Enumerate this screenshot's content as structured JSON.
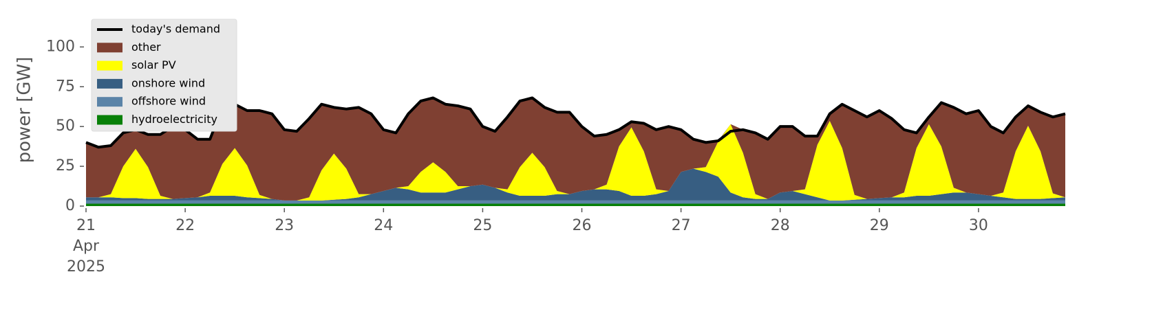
{
  "chart_data": {
    "type": "stacked_area",
    "ylabel": "power [GW]",
    "x": [
      21,
      21.125,
      21.25,
      21.375,
      21.5,
      21.625,
      21.75,
      21.875,
      22,
      22.125,
      22.25,
      22.375,
      22.5,
      22.625,
      22.75,
      22.875,
      23,
      23.125,
      23.25,
      23.375,
      23.5,
      23.625,
      23.75,
      23.875,
      24,
      24.125,
      24.25,
      24.375,
      24.5,
      24.625,
      24.75,
      24.875,
      25,
      25.125,
      25.25,
      25.375,
      25.5,
      25.625,
      25.75,
      25.875,
      26,
      26.125,
      26.25,
      26.375,
      26.5,
      26.625,
      26.75,
      26.875,
      27,
      27.125,
      27.25,
      27.375,
      27.5,
      27.625,
      27.75,
      27.875,
      28,
      28.125,
      28.25,
      28.375,
      28.5,
      28.625,
      28.75,
      28.875,
      29,
      29.125,
      29.25,
      29.375,
      29.5,
      29.625,
      29.75,
      29.875,
      30,
      30.125,
      30.25,
      30.375,
      30.5,
      30.625,
      30.75,
      30.875
    ],
    "xlim": [
      21,
      30.875
    ],
    "xticks": [
      {
        "value": 21,
        "label": "21\nApr\n2025"
      },
      22,
      23,
      24,
      25,
      26,
      27,
      28,
      29,
      30
    ],
    "ylim": [
      0,
      120
    ],
    "yticks": [
      0,
      25,
      50,
      75,
      100
    ],
    "legend": "upper left",
    "series": [
      {
        "name": "today's demand",
        "kind": "line",
        "color": "#000000",
        "values": [
          40,
          37,
          38,
          46,
          48,
          45,
          45,
          50,
          48,
          42,
          42,
          62,
          64,
          60,
          60,
          58,
          48,
          47,
          55,
          64,
          62,
          61,
          62,
          58,
          48,
          46,
          58,
          66,
          68,
          64,
          63,
          61,
          50,
          47,
          56,
          66,
          68,
          62,
          59,
          59,
          50,
          44,
          45,
          48,
          53,
          52,
          48,
          50,
          48,
          42,
          40,
          41,
          47,
          48,
          46,
          42,
          50,
          50,
          44,
          44,
          58,
          64,
          60,
          56,
          60,
          55,
          48,
          46,
          56,
          65,
          62,
          58,
          60,
          50,
          46,
          56,
          63,
          59,
          56,
          58
        ]
      },
      {
        "name": "other",
        "kind": "area",
        "color": "#7f4032",
        "values": [
          34.5,
          31.5,
          30.5,
          21,
          12,
          20.5,
          38.5,
          45.5,
          43,
          36.5,
          33.5,
          35.5,
          27.5,
          34.5,
          53,
          53.5,
          44.5,
          43.5,
          49.5,
          41.5,
          29,
          37.5,
          54.5,
          50.5,
          38.5,
          34.5,
          45.5,
          44.5,
          40.5,
          42.5,
          50.5,
          48.5,
          36.5,
          35.5,
          45.5,
          41.5,
          34.5,
          37.5,
          49.5,
          51.5,
          40.5,
          33.5,
          31.5,
          10.5,
          3.5,
          17.5,
          37.5,
          40.5,
          26.5,
          18.5,
          15.5,
          0.5,
          0,
          14.5,
          38.5,
          37.5,
          41.5,
          40.5,
          33.5,
          5.5,
          4.5,
          27.5,
          53,
          51.5,
          55,
          49.5,
          39.5,
          9.5,
          4.5,
          27.5,
          50.5,
          49.5,
          52.5,
          43.5,
          37.5,
          21.5,
          12.5,
          24.5,
          48,
          52.5
        ]
      },
      {
        "name": "solar PV",
        "kind": "area",
        "color": "#ffff00",
        "values": [
          0,
          0,
          2,
          20,
          31,
          20,
          2,
          0,
          0,
          0,
          2,
          20,
          30,
          20,
          2,
          0,
          0,
          0,
          2,
          19,
          29,
          19,
          2,
          0,
          0,
          0,
          2,
          13,
          19,
          13,
          2,
          0,
          0,
          0,
          2,
          18,
          27,
          18,
          2,
          0,
          0,
          0,
          3,
          28,
          43,
          28,
          3,
          0,
          0,
          0,
          3,
          22,
          43,
          28,
          3,
          0,
          0,
          0,
          3,
          33,
          50,
          33,
          3,
          0,
          0,
          0,
          3,
          30,
          45,
          30,
          3,
          0,
          0,
          0,
          3,
          30,
          46,
          30,
          3,
          0
        ]
      },
      {
        "name": "onshore wind",
        "kind": "area",
        "color": "#375e82",
        "values": [
          2,
          2,
          2,
          1.5,
          1.5,
          1,
          1,
          1,
          1.5,
          2,
          3,
          3,
          3,
          2,
          1.5,
          1,
          0,
          0,
          0,
          0,
          0.5,
          1,
          2,
          4,
          6,
          8,
          7,
          5,
          5,
          5,
          7,
          9,
          10,
          8,
          5,
          3,
          3,
          3,
          4,
          4,
          6,
          7,
          7,
          6,
          3,
          3,
          4,
          6,
          18,
          20,
          18,
          15,
          5,
          2,
          1,
          1,
          5,
          6,
          4,
          2,
          0,
          0,
          0.5,
          1,
          1.5,
          2,
          2,
          3,
          3,
          4,
          5,
          5,
          4,
          3,
          2,
          1,
          1,
          1,
          1.5,
          2
        ]
      },
      {
        "name": "offshore wind",
        "kind": "area",
        "color": "#5b84a8",
        "values": [
          2,
          2,
          2,
          2,
          2,
          2,
          2,
          2,
          2,
          2,
          2,
          2,
          2,
          2,
          2,
          2,
          2,
          2,
          2,
          2,
          2,
          2,
          2,
          2,
          2,
          2,
          2,
          2,
          2,
          2,
          2,
          2,
          2,
          2,
          2,
          2,
          2,
          2,
          2,
          2,
          2,
          2,
          2,
          2,
          2,
          2,
          2,
          2,
          2,
          2,
          2,
          2,
          2,
          2,
          2,
          2,
          2,
          2,
          2,
          2,
          2,
          2,
          2,
          2,
          2,
          2,
          2,
          2,
          2,
          2,
          2,
          2,
          2,
          2,
          2,
          2,
          2,
          2,
          2,
          2
        ]
      },
      {
        "name": "hydroelectricity",
        "kind": "area",
        "color": "#088008",
        "values": [
          1.5,
          1.5,
          1.5,
          1.5,
          1.5,
          1.5,
          1.5,
          1.5,
          1.5,
          1.5,
          1.5,
          1.5,
          1.5,
          1.5,
          1.5,
          1.5,
          1.5,
          1.5,
          1.5,
          1.5,
          1.5,
          1.5,
          1.5,
          1.5,
          1.5,
          1.5,
          1.5,
          1.5,
          1.5,
          1.5,
          1.5,
          1.5,
          1.5,
          1.5,
          1.5,
          1.5,
          1.5,
          1.5,
          1.5,
          1.5,
          1.5,
          1.5,
          1.5,
          1.5,
          1.5,
          1.5,
          1.5,
          1.5,
          1.5,
          1.5,
          1.5,
          1.5,
          1.5,
          1.5,
          1.5,
          1.5,
          1.5,
          1.5,
          1.5,
          1.5,
          1.5,
          1.5,
          1.5,
          1.5,
          1.5,
          1.5,
          1.5,
          1.5,
          1.5,
          1.5,
          1.5,
          1.5,
          1.5,
          1.5,
          1.5,
          1.5,
          1.5,
          1.5,
          1.5,
          1.5
        ]
      }
    ]
  }
}
